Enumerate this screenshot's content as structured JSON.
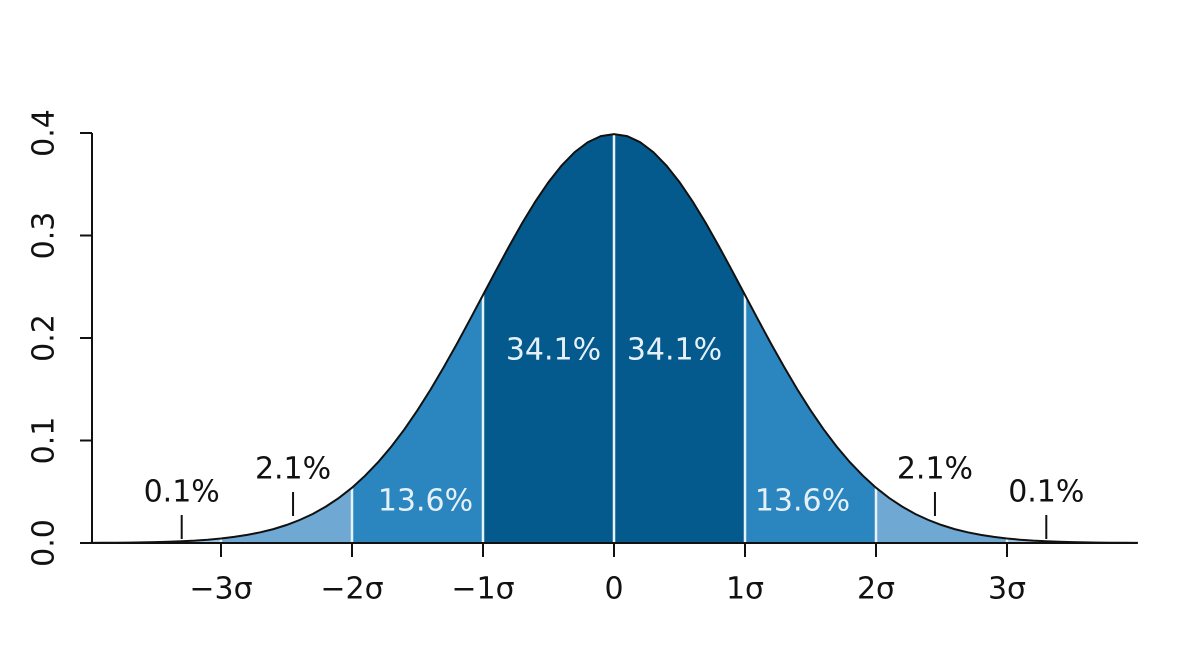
{
  "chart_data": {
    "type": "normal-distribution",
    "xticks": [
      {
        "value": -3,
        "label": "−3σ"
      },
      {
        "value": -2,
        "label": "−2σ"
      },
      {
        "value": -1,
        "label": "−1σ"
      },
      0,
      {
        "value": 1,
        "label": "1σ"
      },
      {
        "value": 2,
        "label": "2σ"
      },
      {
        "value": 3,
        "label": "3σ"
      }
    ],
    "xlim": [
      -4,
      4
    ],
    "ylim": [
      0,
      0.4
    ],
    "yticks": [
      {
        "value": 0,
        "label": "0.0"
      },
      {
        "value": 0.1,
        "label": "0.1"
      },
      {
        "value": 0.2,
        "label": "0.2"
      },
      {
        "value": 0.3,
        "label": "0.3"
      },
      {
        "value": 0.4,
        "label": "0.4"
      }
    ],
    "bounds": [
      -3,
      -2,
      -1,
      0,
      1,
      2,
      3
    ],
    "values": [
      0.1,
      2.1,
      13.6,
      34.1,
      34.1,
      13.6,
      2.1,
      0.1
    ],
    "value_labels": [
      "0.1%",
      "2.1%",
      "13.6%",
      "34.1%",
      "34.1%",
      "13.6%",
      "2.1%",
      "0.1%"
    ],
    "colors": [
      "#9ec4e2",
      "#6fa8d2",
      "#2b86bf",
      "#045a8d",
      "#045a8d",
      "#2b86bf",
      "#6fa8d2",
      "#9ec4e2"
    ]
  }
}
